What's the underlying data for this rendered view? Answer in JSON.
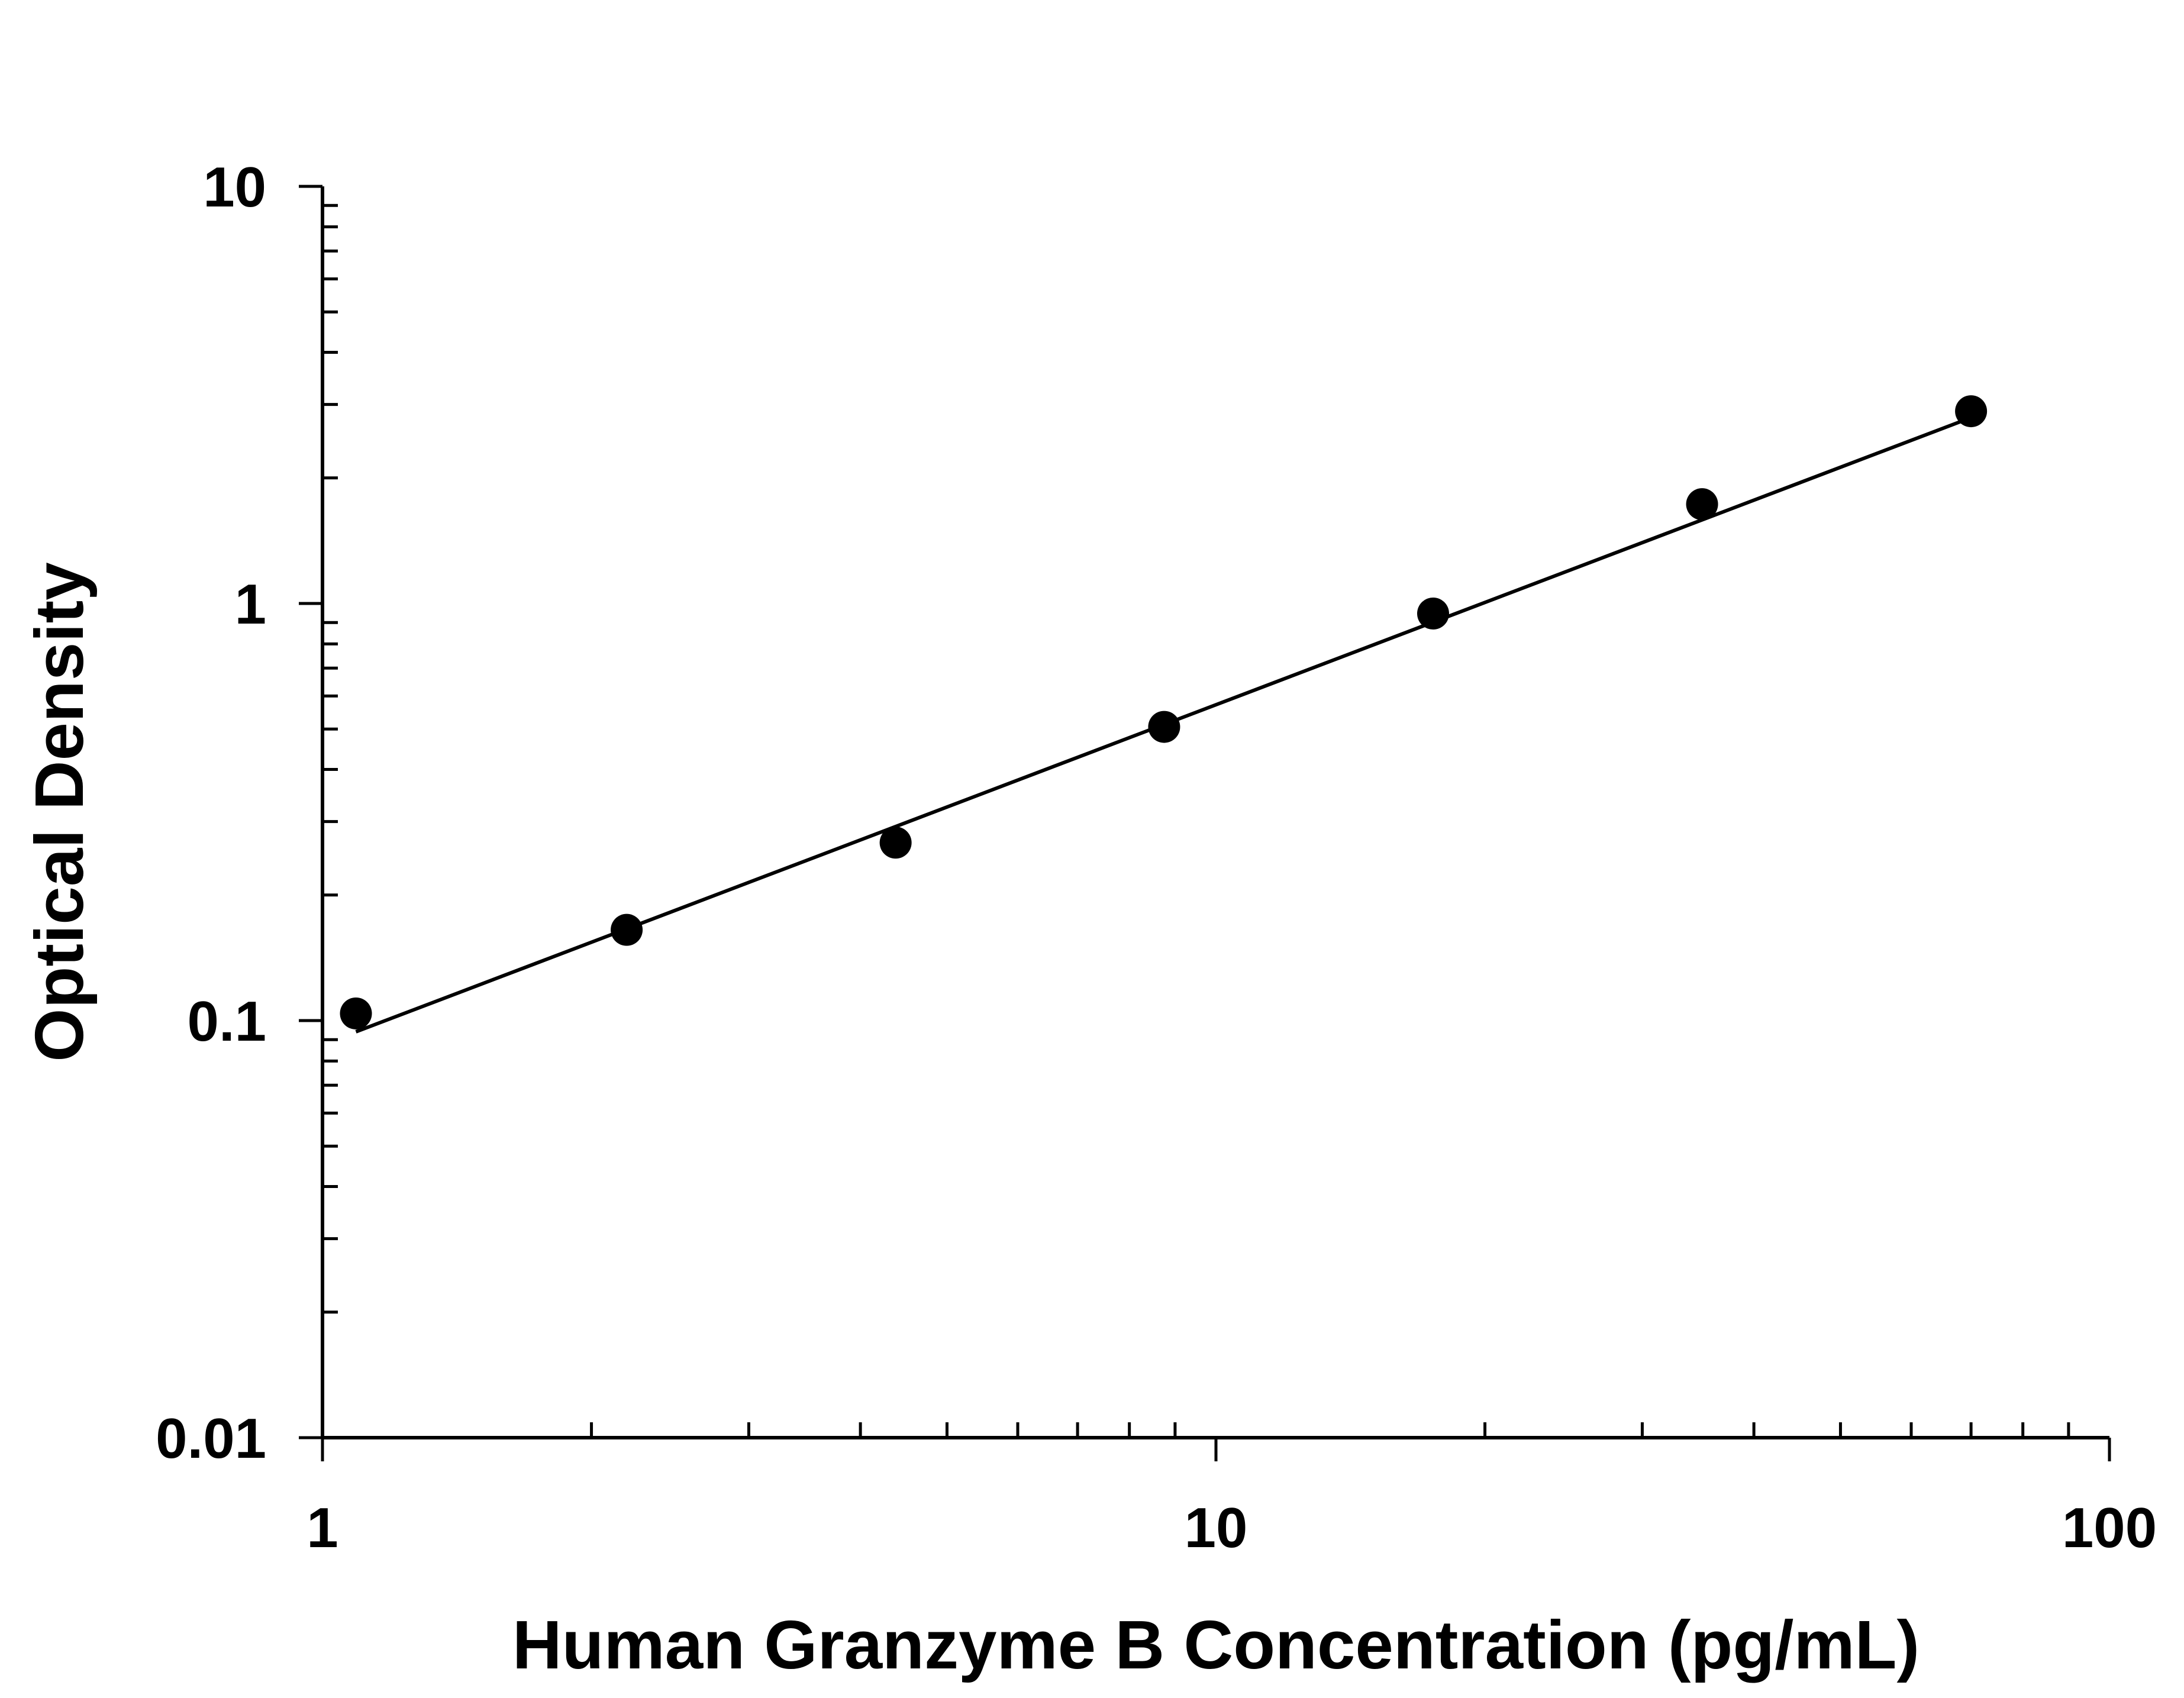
{
  "chart_data": {
    "type": "scatter",
    "xlabel": "Human Granzyme B Concentration (pg/mL)",
    "ylabel": "Optical Density",
    "x_scale": "log",
    "y_scale": "log",
    "xlim": [
      1,
      100
    ],
    "ylim": [
      0.01,
      10
    ],
    "x_ticks": [
      "1",
      "10",
      "100"
    ],
    "y_ticks": [
      "0.01",
      "0.1",
      "1",
      "10"
    ],
    "grid": false,
    "legend": "none",
    "series": [
      {
        "points": [
          {
            "x": 1.09,
            "y": 0.104
          },
          {
            "x": 2.19,
            "y": 0.165
          },
          {
            "x": 4.38,
            "y": 0.267
          },
          {
            "x": 8.75,
            "y": 0.506
          },
          {
            "x": 17.5,
            "y": 0.946
          },
          {
            "x": 35,
            "y": 1.73
          },
          {
            "x": 70,
            "y": 2.89
          }
        ],
        "fit_line": {
          "x": [
            1.09,
            70
          ],
          "y": [
            0.094,
            2.79
          ]
        }
      }
    ],
    "colors": {
      "points": "#000000",
      "line": "#000000",
      "axes": "#000000"
    }
  }
}
